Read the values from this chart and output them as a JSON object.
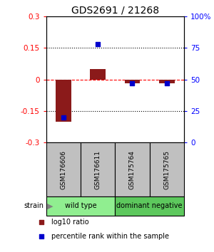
{
  "title": "GDS2691 / 21268",
  "samples": [
    "GSM176606",
    "GSM176611",
    "GSM175764",
    "GSM175765"
  ],
  "log10_ratio": [
    -0.2,
    0.05,
    -0.018,
    -0.018
  ],
  "percentile_rank": [
    20,
    78,
    47,
    47
  ],
  "ylim_left": [
    -0.3,
    0.3
  ],
  "ylim_right": [
    0,
    100
  ],
  "bar_color": "#8B1A1A",
  "dot_color": "#0000CC",
  "hline_y_left": [
    0.15,
    0.0,
    -0.15
  ],
  "hline_styles": [
    "dotted",
    "dashed",
    "dotted"
  ],
  "hline_colors": [
    "black",
    "red",
    "black"
  ],
  "groups": [
    {
      "label": "wild type",
      "samples": [
        0,
        1
      ],
      "color": "#90EE90"
    },
    {
      "label": "dominant negative",
      "samples": [
        2,
        3
      ],
      "color": "#5DC85D"
    }
  ],
  "legend_red_label": "log10 ratio",
  "legend_blue_label": "percentile rank within the sample",
  "bar_width": 0.45,
  "title_fontsize": 10,
  "tick_fontsize": 7.5,
  "sample_fontsize": 6.5,
  "group_fontsize": 7,
  "legend_fontsize": 7
}
